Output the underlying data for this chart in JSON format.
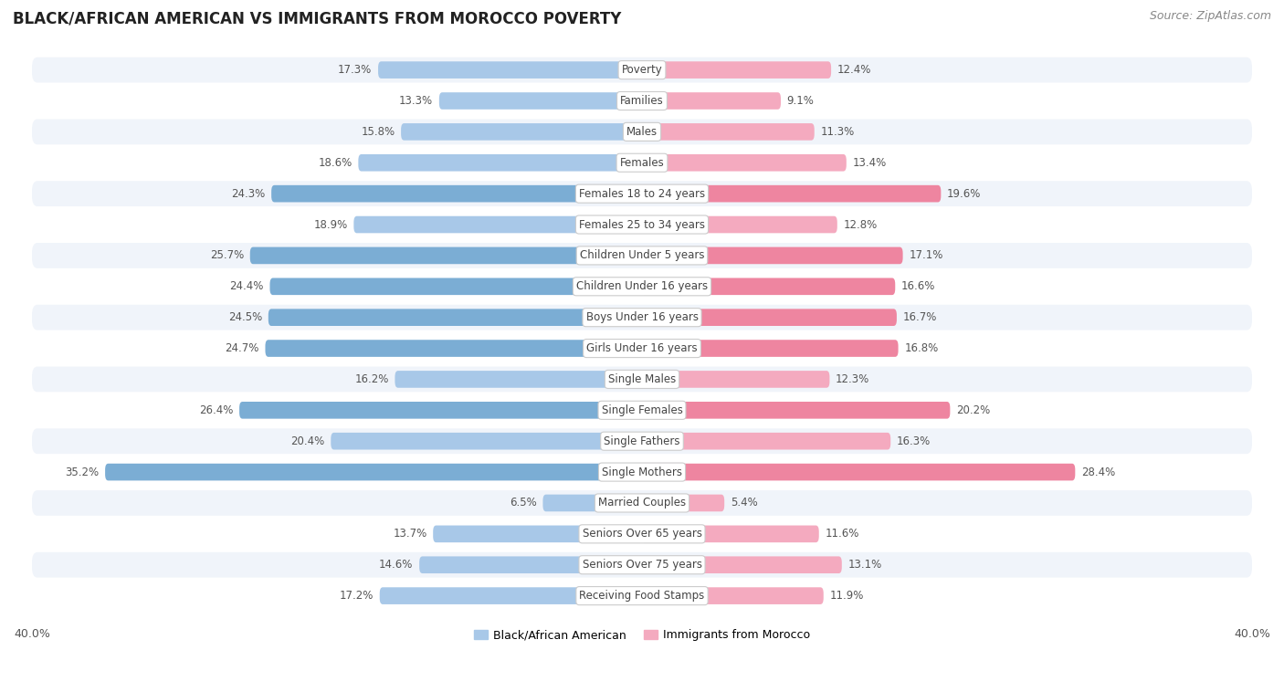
{
  "title": "BLACK/AFRICAN AMERICAN VS IMMIGRANTS FROM MOROCCO POVERTY",
  "source": "Source: ZipAtlas.com",
  "categories": [
    "Poverty",
    "Families",
    "Males",
    "Females",
    "Females 18 to 24 years",
    "Females 25 to 34 years",
    "Children Under 5 years",
    "Children Under 16 years",
    "Boys Under 16 years",
    "Girls Under 16 years",
    "Single Males",
    "Single Females",
    "Single Fathers",
    "Single Mothers",
    "Married Couples",
    "Seniors Over 65 years",
    "Seniors Over 75 years",
    "Receiving Food Stamps"
  ],
  "left_values": [
    17.3,
    13.3,
    15.8,
    18.6,
    24.3,
    18.9,
    25.7,
    24.4,
    24.5,
    24.7,
    16.2,
    26.4,
    20.4,
    35.2,
    6.5,
    13.7,
    14.6,
    17.2
  ],
  "right_values": [
    12.4,
    9.1,
    11.3,
    13.4,
    19.6,
    12.8,
    17.1,
    16.6,
    16.7,
    16.8,
    12.3,
    20.2,
    16.3,
    28.4,
    5.4,
    11.6,
    13.1,
    11.9
  ],
  "left_color_normal": "#A8C8E8",
  "left_color_highlight": "#7BADD4",
  "right_color_normal": "#F4AABF",
  "right_color_highlight": "#EE85A0",
  "row_bg_light": "#F0F4FA",
  "row_bg_white": "#FFFFFF",
  "background_color": "#FFFFFF",
  "axis_max": 40.0,
  "left_label": "Black/African American",
  "right_label": "Immigrants from Morocco",
  "highlight_rows": [
    4,
    6,
    7,
    8,
    9,
    11,
    13
  ],
  "title_fontsize": 12,
  "source_fontsize": 9,
  "value_fontsize": 8.5,
  "category_fontsize": 8.5,
  "legend_fontsize": 9
}
